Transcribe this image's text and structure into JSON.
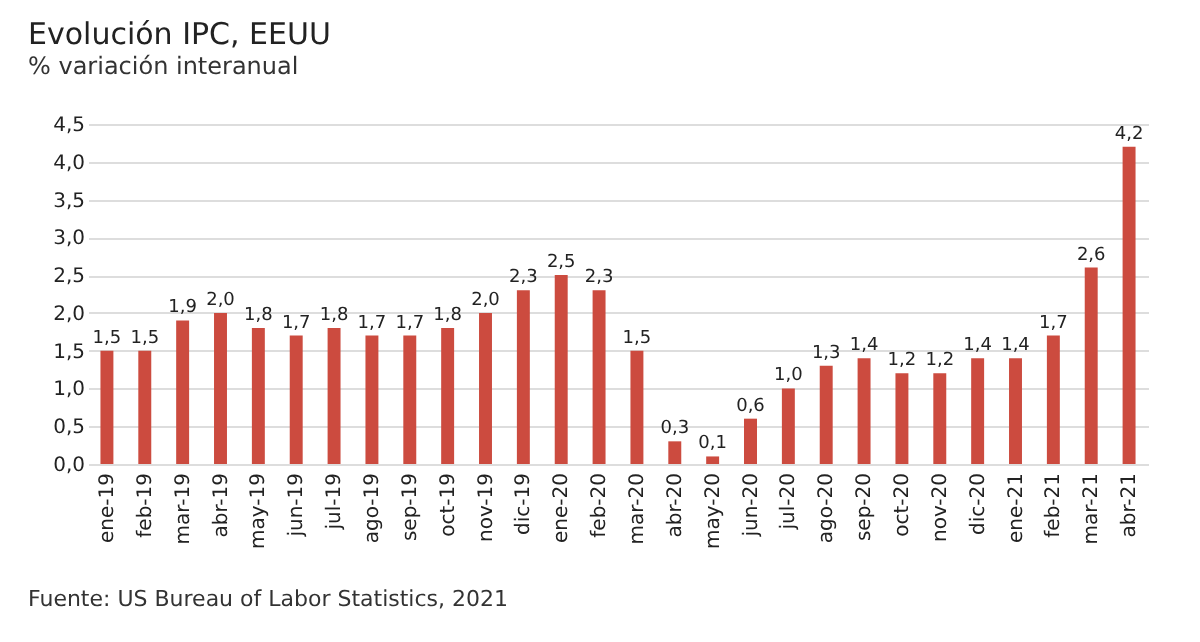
{
  "chart_data": {
    "type": "bar",
    "title": "Evolución IPC, EEUU",
    "subtitle": "% variación interanual",
    "categories": [
      "ene-19",
      "feb-19",
      "mar-19",
      "abr-19",
      "may-19",
      "jun-19",
      "jul-19",
      "ago-19",
      "sep-19",
      "oct-19",
      "nov-19",
      "dic-19",
      "ene-20",
      "feb-20",
      "mar-20",
      "abr-20",
      "may-20",
      "jun-20",
      "jul-20",
      "ago-20",
      "sep-20",
      "oct-20",
      "nov-20",
      "dic-20",
      "ene-21",
      "feb-21",
      "mar-21",
      "abr-21"
    ],
    "values": [
      1.5,
      1.5,
      1.9,
      2.0,
      1.8,
      1.7,
      1.8,
      1.7,
      1.7,
      1.8,
      2.0,
      2.3,
      2.5,
      2.3,
      1.5,
      0.3,
      0.1,
      0.6,
      1.0,
      1.3,
      1.4,
      1.2,
      1.2,
      1.4,
      1.4,
      1.7,
      2.6,
      4.2
    ],
    "value_labels": [
      "1,5",
      "1,5",
      "1,9",
      "2,0",
      "1,8",
      "1,7",
      "1,8",
      "1,7",
      "1,7",
      "1,8",
      "2,0",
      "2,3",
      "2,5",
      "2,3",
      "1,5",
      "0,3",
      "0,1",
      "0,6",
      "1,0",
      "1,3",
      "1,4",
      "1,2",
      "1,2",
      "1,4",
      "1,4",
      "1,7",
      "2,6",
      "4,2"
    ],
    "color": "#cc4b3f",
    "ylim": [
      0,
      4.5
    ],
    "yticks": [
      {
        "value": 0,
        "label": "0,0"
      },
      {
        "value": 0.5,
        "label": "0,5"
      },
      {
        "value": 1,
        "label": "1,0"
      },
      {
        "value": 1.5,
        "label": "1,5"
      },
      {
        "value": 2,
        "label": "2,0"
      },
      {
        "value": 2.5,
        "label": "2,5"
      },
      {
        "value": 3,
        "label": "3,0"
      },
      {
        "value": 3.5,
        "label": "3,5"
      },
      {
        "value": 4,
        "label": "4,0"
      },
      {
        "value": 4.5,
        "label": "4,5"
      }
    ],
    "grid": "y",
    "annotations": [
      "Fuente: US Bureau of Labor Statistics, 2021"
    ]
  }
}
